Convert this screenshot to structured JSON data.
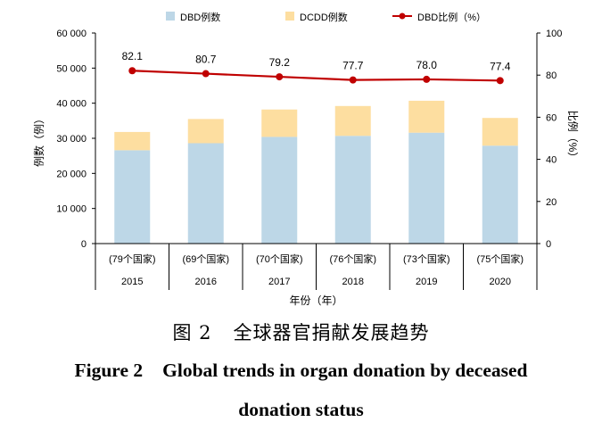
{
  "chart_data": {
    "type": "bar",
    "subtype": "stacked-bar-with-line",
    "categories": [
      "2015",
      "2016",
      "2017",
      "2018",
      "2019",
      "2020"
    ],
    "category_notes": [
      "(79个国家)",
      "(69个国家)",
      "(70个国家)",
      "(76个国家)",
      "(73个国家)",
      "(75个国家)"
    ],
    "series": [
      {
        "name": "DBD例数",
        "type": "bar",
        "axis": "left",
        "color": "#bdd7e7",
        "values": [
          26600,
          28600,
          30400,
          30700,
          31600,
          27900
        ]
      },
      {
        "name": "DCDD例数",
        "type": "bar",
        "axis": "left",
        "color": "#fddea0",
        "values": [
          5200,
          6900,
          7800,
          8500,
          9100,
          7900
        ]
      },
      {
        "name": "DBD比例（%）",
        "type": "line",
        "axis": "right",
        "color": "#c00000",
        "values": [
          82.1,
          80.7,
          79.2,
          77.7,
          78.0,
          77.4
        ],
        "labels": [
          "82.1",
          "80.7",
          "79.2",
          "77.7",
          "78.0",
          "77.4"
        ]
      }
    ],
    "ylabel": "例数（例）",
    "y2label": "比例（%）",
    "xlabel": "年份（年）",
    "ylim": [
      0,
      60000
    ],
    "y2lim": [
      0,
      100
    ],
    "yticks": [
      0,
      10000,
      20000,
      30000,
      40000,
      50000,
      60000
    ],
    "ytick_labels": [
      "0",
      "10 000",
      "20 000",
      "30 000",
      "40 000",
      "50 000",
      "60 000"
    ],
    "y2ticks": [
      0,
      20,
      40,
      60,
      80,
      100
    ],
    "y2tick_labels": [
      "0",
      "20",
      "40",
      "60",
      "80",
      "100"
    ],
    "legend_position": "top",
    "grid": false
  },
  "caption": {
    "cn_label": "图 2",
    "cn_title": "全球器官捐献发展趋势",
    "en_label": "Figure 2",
    "en_title_line1": "Global trends in organ donation by deceased",
    "en_title_line2": "donation status"
  }
}
